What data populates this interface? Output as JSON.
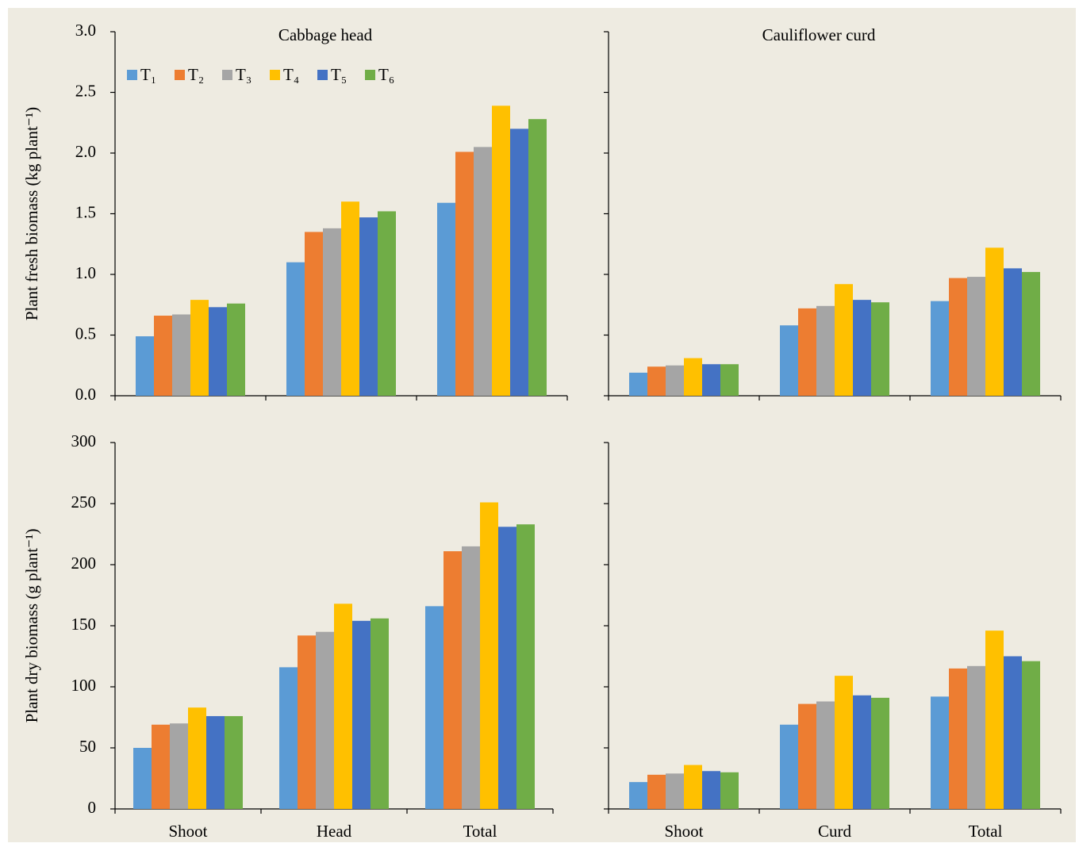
{
  "chart_data": [
    {
      "type": "bar",
      "title": "Cabbage head",
      "y_label": "Plant fresh biomass (kg plant⁻¹)",
      "categories": [
        null,
        null,
        null
      ],
      "legend": "upper left",
      "ylim": [
        0,
        3
      ],
      "yticks": [
        {
          "value": 0,
          "label": "0.0"
        },
        {
          "value": 0.5,
          "label": "0.5"
        },
        {
          "value": 1,
          "label": "1.0"
        },
        {
          "value": 1.5,
          "label": "1.5"
        },
        {
          "value": 2,
          "label": "2.0"
        },
        {
          "value": 2.5,
          "label": "2.5"
        },
        {
          "value": 3,
          "label": "3.0"
        }
      ],
      "series": [
        {
          "name": "T₁",
          "color": "#5b9bd5",
          "values": [
            0.49,
            1.1,
            1.59
          ]
        },
        {
          "name": "T₂",
          "color": "#ed7d31",
          "values": [
            0.66,
            1.35,
            2.01
          ]
        },
        {
          "name": "T₃",
          "color": "#a5a5a5",
          "values": [
            0.67,
            1.38,
            2.05
          ]
        },
        {
          "name": "T₄",
          "color": "#ffc000",
          "values": [
            0.79,
            1.6,
            2.39
          ]
        },
        {
          "name": "T₅",
          "color": "#4472c4",
          "values": [
            0.73,
            1.47,
            2.2
          ]
        },
        {
          "name": "T₆",
          "color": "#70ad47",
          "values": [
            0.76,
            1.52,
            2.28
          ]
        }
      ]
    },
    {
      "type": "bar",
      "title": "Cauliflower curd",
      "categories": [
        null,
        null,
        null
      ],
      "ylim": [
        0,
        3
      ],
      "series": [
        {
          "color": "#5b9bd5",
          "values": [
            0.19,
            0.58,
            0.78
          ]
        },
        {
          "color": "#ed7d31",
          "values": [
            0.24,
            0.72,
            0.97
          ]
        },
        {
          "color": "#a5a5a5",
          "values": [
            0.25,
            0.74,
            0.98
          ]
        },
        {
          "color": "#ffc000",
          "values": [
            0.31,
            0.92,
            1.22
          ]
        },
        {
          "color": "#4472c4",
          "values": [
            0.26,
            0.79,
            1.05
          ]
        },
        {
          "color": "#70ad47",
          "values": [
            0.26,
            0.77,
            1.02
          ]
        }
      ]
    },
    {
      "type": "bar",
      "y_label": "Plant dry biomass (g plant⁻¹)",
      "categories": [
        "Shoot",
        "Head",
        "Total"
      ],
      "ylim": [
        0,
        300
      ],
      "yticks": [
        0,
        50,
        100,
        150,
        200,
        250,
        300
      ],
      "series": [
        {
          "color": "#5b9bd5",
          "values": [
            50,
            116,
            166
          ]
        },
        {
          "color": "#ed7d31",
          "values": [
            69,
            142,
            211
          ]
        },
        {
          "color": "#a5a5a5",
          "values": [
            70,
            145,
            215
          ]
        },
        {
          "color": "#ffc000",
          "values": [
            83,
            168,
            251
          ]
        },
        {
          "color": "#4472c4",
          "values": [
            76,
            154,
            231
          ]
        },
        {
          "color": "#70ad47",
          "values": [
            76,
            156,
            233
          ]
        }
      ]
    },
    {
      "type": "bar",
      "categories": [
        "Shoot",
        "Curd",
        "Total"
      ],
      "ylim": [
        0,
        300
      ],
      "series": [
        {
          "color": "#5b9bd5",
          "values": [
            22,
            69,
            92
          ]
        },
        {
          "color": "#ed7d31",
          "values": [
            28,
            86,
            115
          ]
        },
        {
          "color": "#a5a5a5",
          "values": [
            29,
            88,
            117
          ]
        },
        {
          "color": "#ffc000",
          "values": [
            36,
            109,
            146
          ]
        },
        {
          "color": "#4472c4",
          "values": [
            31,
            93,
            125
          ]
        },
        {
          "color": "#70ad47",
          "values": [
            30,
            91,
            121
          ]
        }
      ]
    }
  ]
}
